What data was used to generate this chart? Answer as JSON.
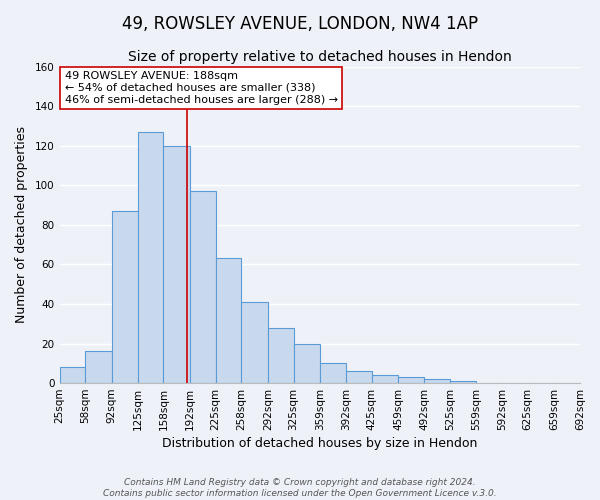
{
  "title": "49, ROWSLEY AVENUE, LONDON, NW4 1AP",
  "subtitle": "Size of property relative to detached houses in Hendon",
  "xlabel": "Distribution of detached houses by size in Hendon",
  "ylabel": "Number of detached properties",
  "bar_heights": [
    8,
    16,
    87,
    127,
    120,
    97,
    63,
    41,
    28,
    20,
    10,
    6,
    4,
    3,
    2,
    1,
    0,
    0,
    0,
    0
  ],
  "bin_edges": [
    25,
    58,
    92,
    125,
    158,
    192,
    225,
    258,
    292,
    325,
    359,
    392,
    425,
    459,
    492,
    525,
    559,
    592,
    625,
    659,
    692
  ],
  "tick_labels": [
    "25sqm",
    "58sqm",
    "92sqm",
    "125sqm",
    "158sqm",
    "192sqm",
    "225sqm",
    "258sqm",
    "292sqm",
    "325sqm",
    "359sqm",
    "392sqm",
    "425sqm",
    "459sqm",
    "492sqm",
    "525sqm",
    "559sqm",
    "592sqm",
    "625sqm",
    "659sqm",
    "692sqm"
  ],
  "bar_color": "#c8d9ee",
  "bar_edge_color": "#5b9bd5",
  "vline_x": 188,
  "vline_color": "#cc0000",
  "ylim": [
    0,
    160
  ],
  "yticks": [
    0,
    20,
    40,
    60,
    80,
    100,
    120,
    140,
    160
  ],
  "annotation_title": "49 ROWSLEY AVENUE: 188sqm",
  "annotation_line1": "← 54% of detached houses are smaller (338)",
  "annotation_line2": "46% of semi-detached houses are larger (288) →",
  "footer1": "Contains HM Land Registry data © Crown copyright and database right 2024.",
  "footer2": "Contains public sector information licensed under the Open Government Licence v.3.0.",
  "background_color": "#eef2f8",
  "grid_color": "#ffffff",
  "title_fontsize": 12,
  "subtitle_fontsize": 10,
  "axis_label_fontsize": 9,
  "tick_fontsize": 7.5,
  "annotation_fontsize": 8,
  "footer_fontsize": 6.5
}
